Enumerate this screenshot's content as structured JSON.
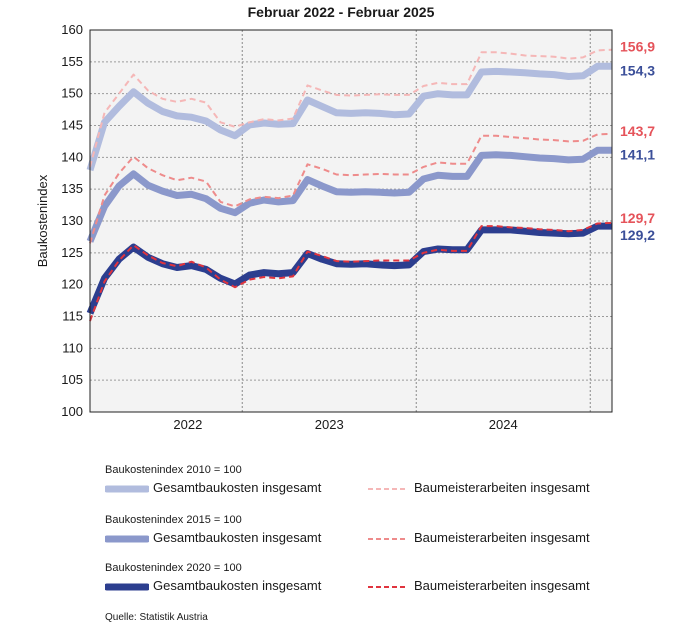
{
  "chart_data": {
    "type": "line",
    "title": "Februar 2022 - Februar 2025",
    "ylabel": "Baukostenindex",
    "xlabel": "",
    "ylim": [
      100,
      160
    ],
    "yticks": [
      "100",
      "105",
      "110",
      "115",
      "120",
      "125",
      "130",
      "135",
      "140",
      "145",
      "150",
      "155",
      "160"
    ],
    "x_tick_labels": [
      "2022",
      "2023",
      "2024"
    ],
    "x_months": [
      "Feb 2022",
      "Mär 2022",
      "Apr 2022",
      "Mai 2022",
      "Jun 2022",
      "Jul 2022",
      "Aug 2022",
      "Sep 2022",
      "Okt 2022",
      "Nov 2022",
      "Dez 2022",
      "Jan 2023",
      "Feb 2023",
      "Mär 2023",
      "Apr 2023",
      "Mai 2023",
      "Jun 2023",
      "Jul 2023",
      "Aug 2023",
      "Sep 2023",
      "Okt 2023",
      "Nov 2023",
      "Dez 2023",
      "Jan 2024",
      "Feb 2024",
      "Mär 2024",
      "Apr 2024",
      "Mai 2024",
      "Jun 2024",
      "Jul 2024",
      "Aug 2024",
      "Sep 2024",
      "Okt 2024",
      "Nov 2024",
      "Dez 2024",
      "Jan 2025",
      "Feb 2025"
    ],
    "grid": true,
    "series": [
      {
        "name": "Gesamtbaukosten insgesamt",
        "base": "Baukostenindex 2010 = 100",
        "color": "#b1bcde",
        "style": "solid",
        "width": 7,
        "values": [
          138.0,
          145.5,
          148.0,
          150.3,
          148.5,
          147.2,
          146.5,
          146.3,
          145.7,
          144.3,
          143.4,
          145.1,
          145.4,
          145.2,
          145.3,
          149.0,
          148.0,
          147.0,
          146.9,
          147.0,
          146.9,
          146.7,
          146.8,
          149.6,
          150.0,
          149.8,
          149.8,
          153.4,
          153.5,
          153.4,
          153.3,
          153.1,
          153.0,
          152.7,
          152.8,
          154.3,
          154.3
        ]
      },
      {
        "name": "Baumeisterarbeiten insgesamt",
        "base": "Baukostenindex 2010 = 100",
        "color": "#f5b7b7",
        "style": "dashed",
        "width": 2,
        "values": [
          138.5,
          147.0,
          150.0,
          153.0,
          150.5,
          149.2,
          148.7,
          149.2,
          148.6,
          145.5,
          144.8,
          145.5,
          146.0,
          145.8,
          146.1,
          151.3,
          150.5,
          149.8,
          149.7,
          149.8,
          149.9,
          149.8,
          149.8,
          151.2,
          151.7,
          151.5,
          151.5,
          156.5,
          156.5,
          156.3,
          156.0,
          155.9,
          155.8,
          155.5,
          155.7,
          156.8,
          156.9
        ]
      },
      {
        "name": "Gesamtbaukosten insgesamt",
        "base": "Baukostenindex 2015 = 100",
        "color": "#8b98cb",
        "style": "solid",
        "width": 7,
        "values": [
          126.8,
          132.3,
          135.5,
          137.4,
          135.6,
          134.7,
          134.0,
          134.2,
          133.5,
          132.0,
          131.3,
          132.8,
          133.3,
          133.0,
          133.2,
          136.5,
          135.5,
          134.6,
          134.5,
          134.6,
          134.5,
          134.4,
          134.5,
          136.6,
          137.2,
          137.0,
          137.0,
          140.3,
          140.4,
          140.3,
          140.1,
          139.9,
          139.8,
          139.6,
          139.7,
          141.1,
          141.1
        ]
      },
      {
        "name": "Baumeisterarbeiten insgesamt",
        "base": "Baukostenindex 2015 = 100",
        "color": "#ee8b8b",
        "style": "dashed",
        "width": 2,
        "values": [
          126.5,
          134.0,
          137.5,
          140.1,
          138.3,
          137.2,
          136.4,
          136.8,
          136.2,
          133.0,
          132.3,
          133.4,
          133.8,
          133.6,
          134.0,
          138.9,
          138.2,
          137.3,
          137.2,
          137.3,
          137.4,
          137.3,
          137.3,
          138.5,
          139.2,
          139.0,
          139.0,
          143.4,
          143.4,
          143.2,
          143.0,
          142.8,
          142.7,
          142.5,
          142.6,
          143.6,
          143.7
        ]
      },
      {
        "name": "Gesamtbaukosten insgesamt",
        "base": "Baukostenindex 2020 = 100",
        "color": "#2c3e8f",
        "style": "solid",
        "width": 7,
        "values": [
          115.5,
          121.0,
          124.0,
          125.9,
          124.3,
          123.3,
          122.7,
          123.0,
          122.4,
          121.0,
          120.1,
          121.5,
          121.9,
          121.7,
          121.9,
          124.9,
          124.0,
          123.3,
          123.2,
          123.3,
          123.1,
          123.0,
          123.1,
          125.2,
          125.6,
          125.5,
          125.5,
          128.6,
          128.6,
          128.6,
          128.4,
          128.2,
          128.1,
          128.0,
          128.1,
          129.2,
          129.2
        ]
      },
      {
        "name": "Baumeisterarbeiten insgesamt",
        "base": "Baukostenindex 2020 = 100",
        "color": "#e0343e",
        "style": "dashed",
        "width": 2,
        "values": [
          114.3,
          120.5,
          123.8,
          126.2,
          124.6,
          123.4,
          122.9,
          123.6,
          122.7,
          120.8,
          119.6,
          120.8,
          121.2,
          121.0,
          121.3,
          125.2,
          124.5,
          123.7,
          123.6,
          123.7,
          123.8,
          123.8,
          123.8,
          125.0,
          125.5,
          125.3,
          125.3,
          129.2,
          129.2,
          129.0,
          128.9,
          128.7,
          128.6,
          128.4,
          128.6,
          129.6,
          129.7
        ]
      }
    ],
    "end_labels": [
      {
        "text": "156,9",
        "value": 156.9,
        "color": "#e5535a"
      },
      {
        "text": "154,3",
        "value": 154.3,
        "color": "#3b4f99"
      },
      {
        "text": "143,7",
        "value": 143.7,
        "color": "#e5535a"
      },
      {
        "text": "141,1",
        "value": 141.1,
        "color": "#3b4f99"
      },
      {
        "text": "129,7",
        "value": 129.7,
        "color": "#e5535a"
      },
      {
        "text": "129,2",
        "value": 129.2,
        "color": "#3b4f99"
      }
    ]
  },
  "legend": {
    "groups": [
      {
        "header": "Baukostenindex 2010 = 100",
        "solid_label": "Gesamtbaukosten insgesamt",
        "dashed_label": "Baumeisterarbeiten insgesamt",
        "solid_color": "#b1bcde",
        "dashed_color": "#f5b7b7"
      },
      {
        "header": "Baukostenindex 2015 = 100",
        "solid_label": "Gesamtbaukosten insgesamt",
        "dashed_label": "Baumeisterarbeiten insgesamt",
        "solid_color": "#8b98cb",
        "dashed_color": "#ee8b8b"
      },
      {
        "header": "Baukostenindex 2020 = 100",
        "solid_label": "Gesamtbaukosten insgesamt",
        "dashed_label": "Baumeisterarbeiten insgesamt",
        "solid_color": "#2c3e8f",
        "dashed_color": "#e0343e"
      }
    ]
  },
  "source": "Quelle: Statistik Austria"
}
